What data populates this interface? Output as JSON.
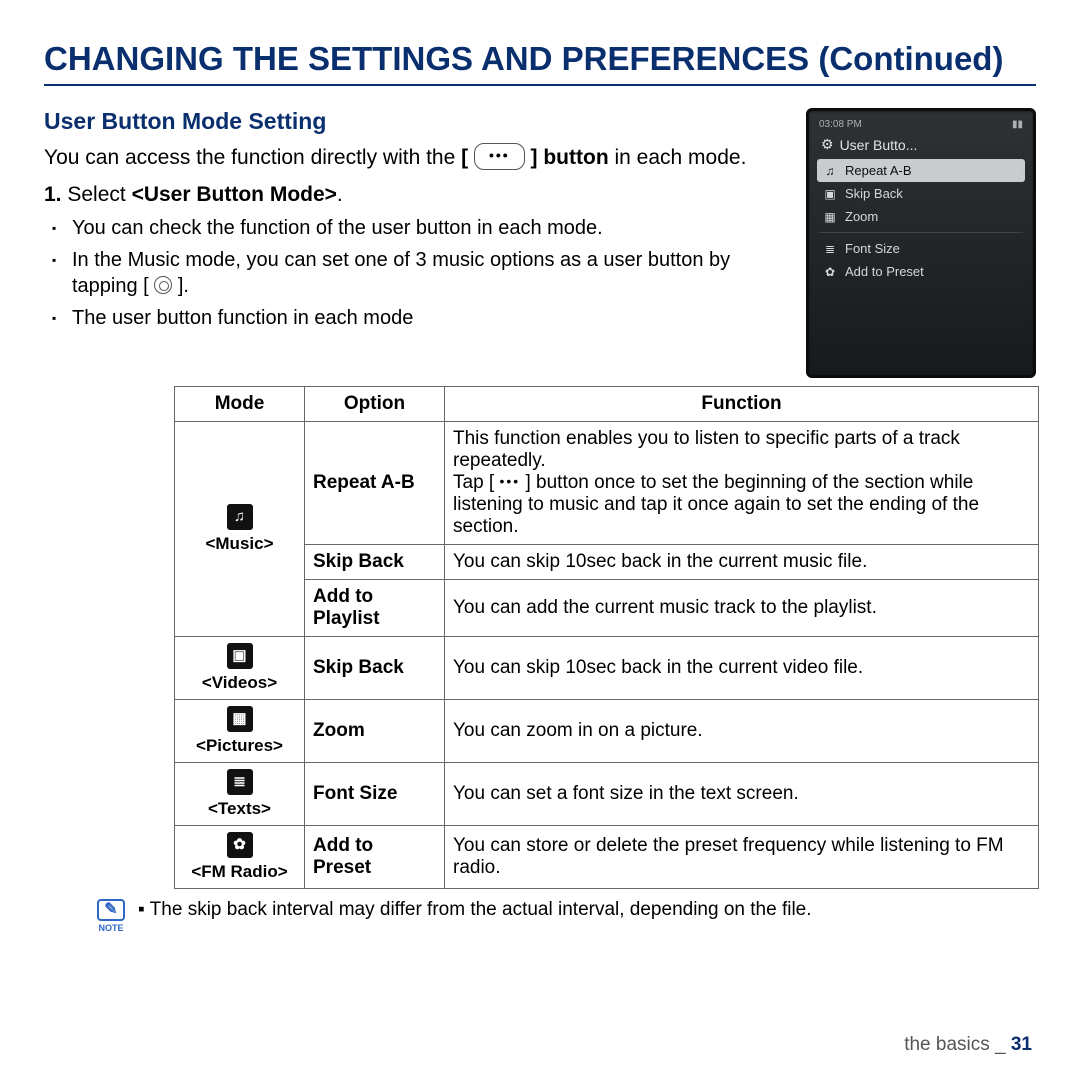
{
  "colors": {
    "brand": "#0a2f6f",
    "text": "#000000",
    "border": "#666666"
  },
  "page_title": "CHANGING THE SETTINGS AND PREFERENCES (Continued)",
  "section_title": "User Button Mode Setting",
  "intro_pre": "You can access the function directly with the ",
  "intro_post_strong": "button",
  "intro_post": " in each mode.",
  "step_num": "1.",
  "step_pre": "Select ",
  "step_label": "<User Button Mode>",
  "step_post": ".",
  "bullets": {
    "b1": "You can check the function of the user button in each mode.",
    "b2_pre": "In the Music mode, you can set one of 3 music options as a user button by tapping [ ",
    "b2_post": " ].",
    "b3": "The user button function in each mode"
  },
  "device": {
    "time": "03:08 PM",
    "batt_glyph": "▮▮",
    "title": "User Butto...",
    "items": [
      {
        "glyph": "♫",
        "label": "Repeat A-B",
        "selected": true,
        "chev": "›"
      },
      {
        "glyph": "▣",
        "label": "Skip Back",
        "selected": false
      },
      {
        "glyph": "▦",
        "label": "Zoom",
        "selected": false
      },
      {
        "glyph": "≣",
        "label": "Font Size",
        "selected": false,
        "gap_before": true
      },
      {
        "glyph": "✿",
        "label": "Add to Preset",
        "selected": false
      }
    ]
  },
  "table": {
    "headers": {
      "mode": "Mode",
      "option": "Option",
      "function": "Function"
    },
    "modes": {
      "music": {
        "icon": "♫",
        "label": "<Music>"
      },
      "videos": {
        "icon": "▣",
        "label": "<Videos>"
      },
      "pictures": {
        "icon": "▦",
        "label": "<Pictures>"
      },
      "texts": {
        "icon": "≣",
        "label": "<Texts>"
      },
      "fmradio": {
        "icon": "✿",
        "label": "<FM Radio>"
      }
    },
    "rows": {
      "music_repeat": {
        "option": "Repeat A-B",
        "fn_line1": "This function enables you to listen to specific parts of a track repeatedly.",
        "fn_line2_pre": "Tap [ ",
        "fn_line2_post": " ] button once to set the beginning of the section while listening to music and tap it once again to set the ending of the section."
      },
      "music_skip": {
        "option": "Skip Back",
        "fn": "You can skip 10sec back in the current music file."
      },
      "music_add": {
        "option": "Add to Playlist",
        "fn": "You can add the current music track to the playlist."
      },
      "videos_skip": {
        "option": "Skip Back",
        "fn": "You can skip 10sec back in the current video file."
      },
      "pictures_zoom": {
        "option": "Zoom",
        "fn": "You can zoom in on a picture."
      },
      "texts_font": {
        "option": "Font Size",
        "fn": "You can set a font size in the text screen."
      },
      "fm_preset": {
        "option": "Add to Preset",
        "fn": "You can store or delete the preset frequency while listening to FM radio."
      }
    }
  },
  "note_glyph": "✎",
  "note_label": "NOTE",
  "note_text": "The skip back interval may differ from the actual interval, depending on the file.",
  "footer_section": "the basics _ ",
  "footer_page": "31"
}
